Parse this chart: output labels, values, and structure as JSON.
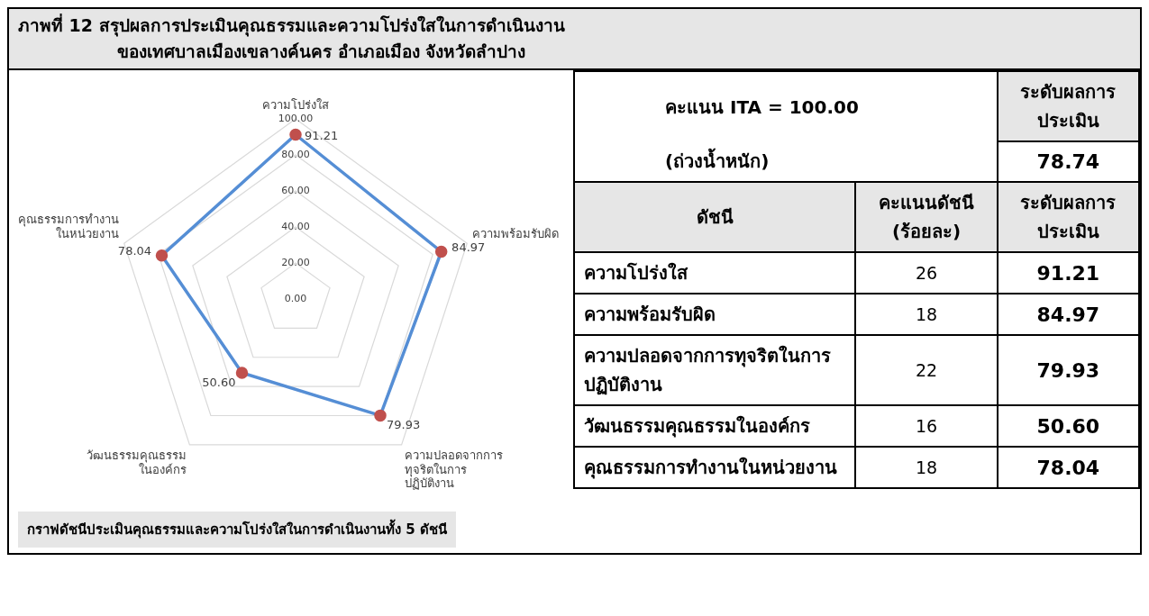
{
  "chart_data": [
    {
      "type": "radar",
      "title": "ภาพที่ 12 สรุปผลการประเมินคุณธรรมและความโปร่งใสในการดำเนินงาน",
      "subtitle": "ของเทศบาลเมืองเขลางค์นคร อำเภอเมือง จังหวัดลำปาง",
      "categories": [
        "ความโปร่งใส",
        "ความพร้อมรับผิด",
        "ความปลอดจากการทุจริตในการปฏิบัติงาน",
        "วัฒนธรรมคุณธรรมในองค์กร",
        "คุณธรรมการทำงานในหน่วยงาน"
      ],
      "series": [
        {
          "color": "#558ed5",
          "values": [
            91.21,
            84.97,
            79.93,
            50.6,
            78.04
          ],
          "value_labels": [
            "91.21",
            "84.97",
            "79.93",
            "50.60",
            "78.04"
          ]
        }
      ],
      "ylim": [
        0,
        100
      ],
      "yticks": [
        {
          "value": 0,
          "label": "0.00"
        },
        {
          "value": 20,
          "label": "20.00"
        },
        {
          "value": 40,
          "label": "40.00"
        },
        {
          "value": 60,
          "label": "60.00"
        },
        {
          "value": 80,
          "label": "80.00"
        },
        {
          "value": 100,
          "label": "100.00"
        }
      ],
      "grid": true,
      "marker": "circle",
      "annotations": [
        "กราฟดัชนีประเมินคุณธรรมและความโปร่งใสในการดำเนินงานทั้ง 5 ดัชนี"
      ]
    },
    {
      "type": "other",
      "xlabel": "ดัชนี",
      "categories": [
        "ความโปร่งใส",
        "ความพร้อมรับผิด",
        "ความปลอดจากการทุจริตในการปฏิบัติงาน",
        "วัฒนธรรมคุณธรรมในองค์กร",
        "คุณธรรมการทำงานในหน่วยงาน"
      ],
      "annotations": [
        "คะแนน ITA = 100.00",
        "(ถ่วงน้ำหนัก)",
        "ระดับผลการประเมิน",
        "78.74",
        "คะแนนดัชนี (ร้อยละ)",
        "ระดับผลการประเมิน",
        "26",
        "91.21",
        "18",
        "84.97",
        "22",
        "79.93",
        "16",
        "50.60",
        "18",
        "78.04"
      ]
    }
  ]
}
